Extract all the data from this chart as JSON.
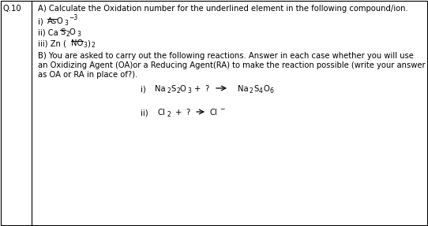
{
  "bg_color": "#ffffff",
  "border_color": "#000000",
  "label_color": "#000000",
  "q_label": "Q.10",
  "part_A_header": "A) Calculate the Oxidation number for the underlined element in the following compound/ion.",
  "part_B_line1": "B) You are asked to carry out the following reactions. Answer in each case whether you will use",
  "part_B_line2": "an Oxidizing Agent (OA)or a Reducing Agent(RA) to make the reaction possible (write your answer",
  "part_B_line3": "as OA or RA in place of?).",
  "font_size": 7.2,
  "small_font": 5.5
}
